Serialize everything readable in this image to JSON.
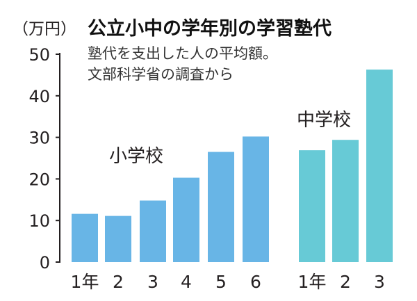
{
  "chart_data": {
    "type": "bar",
    "unit_label": "（万円）",
    "title": "公立小中の学年別の学習塾代",
    "subtitle_lines": [
      "塾代を支出した人の平均額。",
      "文部科学省の調査から"
    ],
    "ylim": [
      0,
      50
    ],
    "yticks": [
      0,
      10,
      20,
      30,
      40,
      50
    ],
    "grid": false,
    "groups": [
      {
        "name": "小学校",
        "color": "#68b5e6",
        "categories": [
          "1年",
          "2",
          "3",
          "4",
          "5",
          "6"
        ],
        "values": [
          11.6,
          11.1,
          14.8,
          20.3,
          26.5,
          30.2
        ]
      },
      {
        "name": "中学校",
        "color": "#67cad6",
        "categories": [
          "1年",
          "2",
          "3"
        ],
        "values": [
          26.9,
          29.4,
          46.3
        ]
      }
    ]
  }
}
